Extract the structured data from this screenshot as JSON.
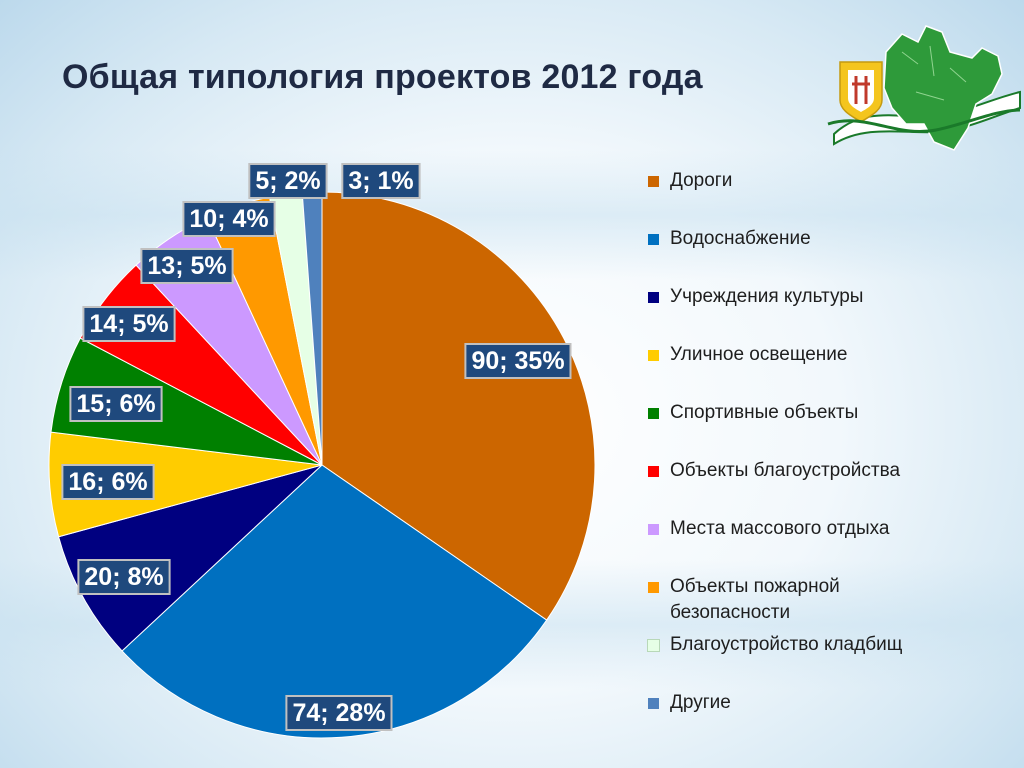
{
  "slide": {
    "title": "Общая типология проектов 2012 года"
  },
  "chart_data": {
    "type": "pie",
    "title": "Общая типология проектов 2012 года",
    "start": "12 o'clock",
    "direction": "clockwise",
    "legend_position": "right",
    "series": [
      {
        "name": "Дороги",
        "value": 90,
        "percent": "35%",
        "label": "90; 35%",
        "color": "#CC6600"
      },
      {
        "name": "Водоснабжение",
        "value": 74,
        "percent": "28%",
        "label": "74; 28%",
        "color": "#0070C0"
      },
      {
        "name": "Учреждения культуры",
        "value": 20,
        "percent": "8%",
        "label": "20; 8%",
        "color": "#000080"
      },
      {
        "name": "Уличное освещение",
        "value": 16,
        "percent": "6%",
        "label": "16; 6%",
        "color": "#FFCC00"
      },
      {
        "name": "Спортивные объекты",
        "value": 15,
        "percent": "6%",
        "label": "15; 6%",
        "color": "#008000"
      },
      {
        "name": "Объекты благоустройства",
        "value": 14,
        "percent": "5%",
        "label": "14; 5%",
        "color": "#FF0000"
      },
      {
        "name": "Места массового отдыха",
        "value": 13,
        "percent": "5%",
        "label": "13; 5%",
        "color": "#CC99FF"
      },
      {
        "name": "Объекты пожарной безопасности",
        "value": 10,
        "percent": "4%",
        "label": "10; 4%",
        "color": "#FF9900"
      },
      {
        "name": "Благоустройство кладбищ",
        "value": 5,
        "percent": "2%",
        "label": "5; 2%",
        "color": "#E6FFE6"
      },
      {
        "name": "Другие",
        "value": 3,
        "percent": "1%",
        "label": "3; 1%",
        "color": "#4F81BD"
      }
    ]
  },
  "legend": {
    "items": [
      {
        "label": "Дороги",
        "color": "#CC6600"
      },
      {
        "label": "Водоснабжение",
        "color": "#0070C0"
      },
      {
        "label": "Учреждения культуры",
        "color": "#000080"
      },
      {
        "label": "Уличное освещение",
        "color": "#FFCC00"
      },
      {
        "label": "Спортивные объекты",
        "color": "#008000"
      },
      {
        "label": "Объекты благоустройства",
        "color": "#FF0000"
      },
      {
        "label": "Места массового отдыха",
        "color": "#CC99FF"
      },
      {
        "label": "Объекты пожарной безопасности",
        "color": "#FF9900"
      },
      {
        "label": "Благоустройство кладбищ",
        "color": "#E6FFE6"
      },
      {
        "label": "Другие",
        "color": "#4F81BD"
      }
    ]
  },
  "colors": {
    "title_text": "#1F2A44",
    "data_label_bg": "#1F497D",
    "data_label_border": "#C0C0C0"
  },
  "emblem": {
    "icon": "kirov-region-emblem"
  }
}
